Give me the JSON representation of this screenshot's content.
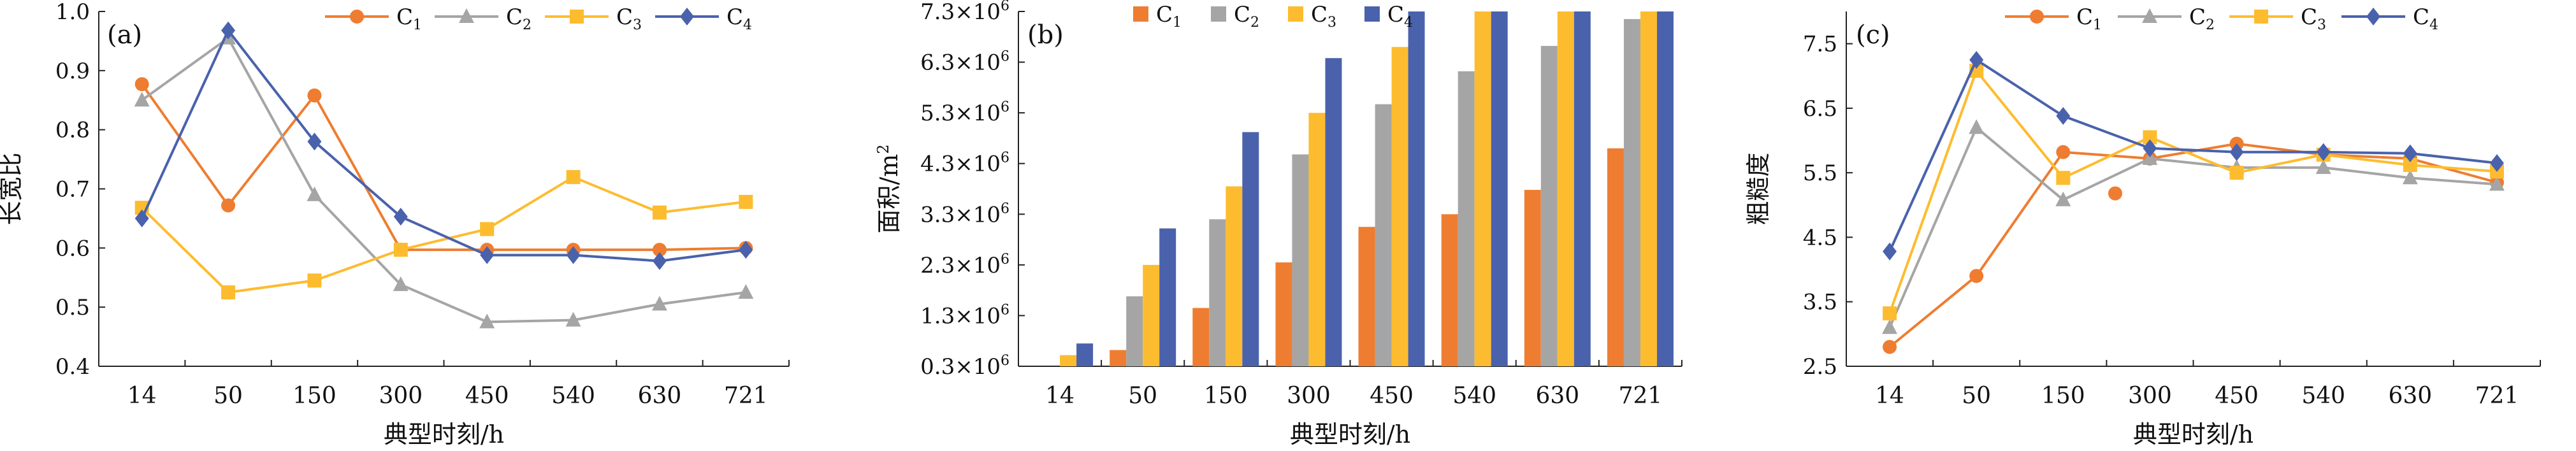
{
  "colors": {
    "C1": "#ee7d31",
    "C2": "#a5a5a5",
    "C3": "#fdbc2f",
    "C4": "#4a62ac"
  },
  "chart_data": [
    {
      "type": "line",
      "panel": "(a)",
      "categories": [
        "14",
        "50",
        "150",
        "300",
        "450",
        "540",
        "630",
        "721"
      ],
      "xlabel": "典型时刻/h",
      "ylabel": "长宽比",
      "ylim": [
        0.4,
        1.0
      ],
      "yticks": [
        "0.4",
        "0.5",
        "0.6",
        "0.7",
        "0.8",
        "0.9",
        "1.0"
      ],
      "legend_position": "top",
      "series": [
        {
          "name": "C1",
          "values": [
            0.877,
            0.672,
            0.858,
            0.597,
            0.597,
            0.597,
            0.597,
            0.6
          ]
        },
        {
          "name": "C2",
          "values": [
            0.85,
            0.955,
            0.69,
            0.538,
            0.475,
            0.478,
            0.505,
            0.525
          ]
        },
        {
          "name": "C3",
          "values": [
            0.668,
            0.525,
            0.545,
            0.597,
            0.632,
            0.72,
            0.66,
            0.678
          ]
        },
        {
          "name": "C4",
          "values": [
            0.65,
            0.968,
            0.78,
            0.653,
            0.588,
            0.588,
            0.578,
            0.597
          ]
        }
      ]
    },
    {
      "type": "bar",
      "panel": "(b)",
      "categories": [
        "14",
        "50",
        "150",
        "300",
        "450",
        "540",
        "630",
        "721"
      ],
      "xlabel": "典型时刻/h",
      "ylabel": "面积/m",
      "ylabel_sup": "2",
      "ylim": [
        0.3,
        7.3
      ],
      "yticks": [
        "0.3×10",
        "1.3×10",
        "2.3×10",
        "3.3×10",
        "4.3×10",
        "5.3×10",
        "6.3×10",
        "7.3×10"
      ],
      "ytick_sup": "6",
      "legend_position": "top",
      "series": [
        {
          "name": "C1",
          "values": [
            0.25,
            0.62,
            1.45,
            2.35,
            3.05,
            3.3,
            3.78,
            4.6
          ]
        },
        {
          "name": "C2",
          "values": [
            0.25,
            1.68,
            3.2,
            4.48,
            5.47,
            6.12,
            6.62,
            7.15
          ]
        },
        {
          "name": "C3",
          "values": [
            0.52,
            2.3,
            3.85,
            5.3,
            6.6,
            7.35,
            7.5,
            7.5
          ]
        },
        {
          "name": "C4",
          "values": [
            0.75,
            3.02,
            4.92,
            6.38,
            7.5,
            7.5,
            7.5,
            7.5
          ]
        }
      ]
    },
    {
      "type": "line",
      "panel": "(c)",
      "categories": [
        "14",
        "50",
        "150",
        "300",
        "450",
        "540",
        "630",
        "721"
      ],
      "xlabel": "典型时刻/h",
      "ylabel": "粗糙度",
      "ylim": [
        2.5,
        8.0
      ],
      "yticks": [
        "2.5",
        "3.5",
        "4.5",
        "5.5",
        "6.5",
        "7.5"
      ],
      "legend_position": "top",
      "series": [
        {
          "name": "C1",
          "values": [
            2.8,
            3.9,
            5.82,
            5.72,
            5.95,
            5.78,
            5.72,
            5.35
          ]
        },
        {
          "name": "C2",
          "values": [
            3.1,
            6.2,
            5.08,
            5.72,
            5.58,
            5.58,
            5.42,
            5.32
          ]
        },
        {
          "name": "C3",
          "values": [
            3.32,
            7.08,
            5.42,
            6.05,
            5.5,
            5.78,
            5.62,
            5.52
          ]
        },
        {
          "name": "C4",
          "values": [
            4.28,
            7.25,
            6.38,
            5.88,
            5.82,
            5.82,
            5.8,
            5.65
          ]
        }
      ],
      "extra_points": [
        {
          "series": "C1",
          "x": 2.6,
          "y": 5.18
        }
      ]
    }
  ]
}
